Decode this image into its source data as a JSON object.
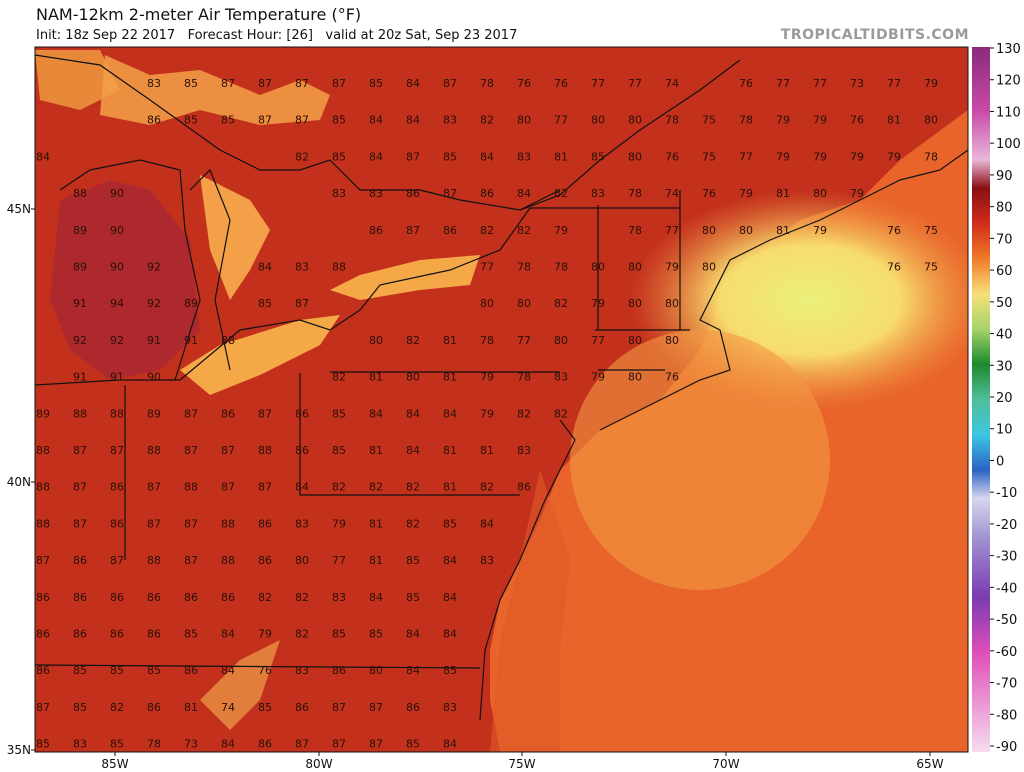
{
  "header": {
    "title": "NAM-12km 2-meter Air Temperature (°F)",
    "subtitle": "Init: 18z Sep 22 2017   Forecast Hour: [26]   valid at 20z Sat, Sep 23 2017",
    "credit": "TROPICALTIDBITS.COM"
  },
  "colorbar": {
    "ticks": [
      130,
      120,
      110,
      100,
      90,
      80,
      70,
      60,
      50,
      40,
      30,
      20,
      10,
      0,
      -10,
      -20,
      -30,
      -40,
      -50,
      -60,
      -70,
      -80,
      -90
    ]
  },
  "latitude_labels": [
    "45N",
    "40N",
    "35N"
  ],
  "longitude_labels": [
    "85W",
    "80W",
    "75W",
    "70W",
    "65W"
  ],
  "grid": {
    "rows": [
      [
        null,
        null,
        null,
        83,
        85,
        87,
        87,
        87,
        87,
        85,
        84,
        87,
        78,
        76,
        76,
        77,
        77,
        74,
        null,
        76,
        77,
        77,
        73,
        77,
        79
      ],
      [
        null,
        null,
        null,
        86,
        85,
        85,
        87,
        87,
        85,
        84,
        84,
        83,
        82,
        80,
        77,
        80,
        80,
        78,
        75,
        78,
        79,
        79,
        76,
        81,
        80
      ],
      [
        84,
        null,
        null,
        null,
        null,
        null,
        null,
        82,
        85,
        84,
        87,
        85,
        84,
        83,
        81,
        85,
        80,
        76,
        75,
        77,
        79,
        79,
        79,
        79,
        78
      ],
      [
        null,
        88,
        90,
        null,
        null,
        null,
        null,
        null,
        83,
        83,
        86,
        87,
        86,
        84,
        82,
        83,
        78,
        74,
        76,
        79,
        81,
        80,
        79,
        null,
        null
      ],
      [
        null,
        89,
        90,
        null,
        null,
        null,
        null,
        null,
        null,
        86,
        87,
        86,
        82,
        82,
        79,
        null,
        78,
        77,
        80,
        80,
        81,
        79,
        null,
        76,
        75
      ],
      [
        null,
        89,
        90,
        92,
        null,
        null,
        84,
        83,
        88,
        null,
        null,
        null,
        77,
        78,
        78,
        80,
        80,
        79,
        80,
        null,
        null,
        null,
        null,
        76,
        75
      ],
      [
        null,
        91,
        94,
        92,
        89,
        null,
        85,
        87,
        null,
        null,
        null,
        null,
        80,
        80,
        82,
        79,
        80,
        80
      ],
      [
        null,
        92,
        92,
        91,
        91,
        88,
        null,
        null,
        null,
        80,
        82,
        81,
        78,
        77,
        80,
        77,
        80,
        80
      ],
      [
        null,
        91,
        91,
        90,
        null,
        null,
        null,
        null,
        82,
        81,
        80,
        81,
        79,
        78,
        83,
        79,
        80,
        76
      ],
      [
        89,
        88,
        88,
        89,
        87,
        86,
        87,
        86,
        85,
        84,
        84,
        84,
        79,
        82,
        82
      ],
      [
        88,
        87,
        87,
        88,
        87,
        87,
        88,
        86,
        85,
        81,
        84,
        81,
        81,
        83
      ],
      [
        88,
        87,
        86,
        87,
        88,
        87,
        87,
        84,
        82,
        82,
        82,
        81,
        82,
        86
      ],
      [
        88,
        87,
        86,
        87,
        87,
        88,
        86,
        83,
        79,
        81,
        82,
        85,
        84
      ],
      [
        87,
        86,
        87,
        88,
        87,
        88,
        86,
        80,
        77,
        81,
        85,
        84,
        83
      ],
      [
        86,
        86,
        86,
        86,
        86,
        86,
        82,
        82,
        83,
        84,
        85,
        84
      ],
      [
        86,
        86,
        86,
        86,
        85,
        84,
        79,
        82,
        85,
        85,
        84,
        84
      ],
      [
        86,
        85,
        85,
        85,
        86,
        84,
        76,
        83,
        86,
        80,
        84,
        85
      ],
      [
        87,
        85,
        82,
        86,
        81,
        74,
        85,
        86,
        87,
        87,
        86,
        83
      ],
      [
        85,
        83,
        85,
        78,
        73,
        84,
        86,
        87,
        87,
        87,
        85,
        84
      ]
    ]
  }
}
